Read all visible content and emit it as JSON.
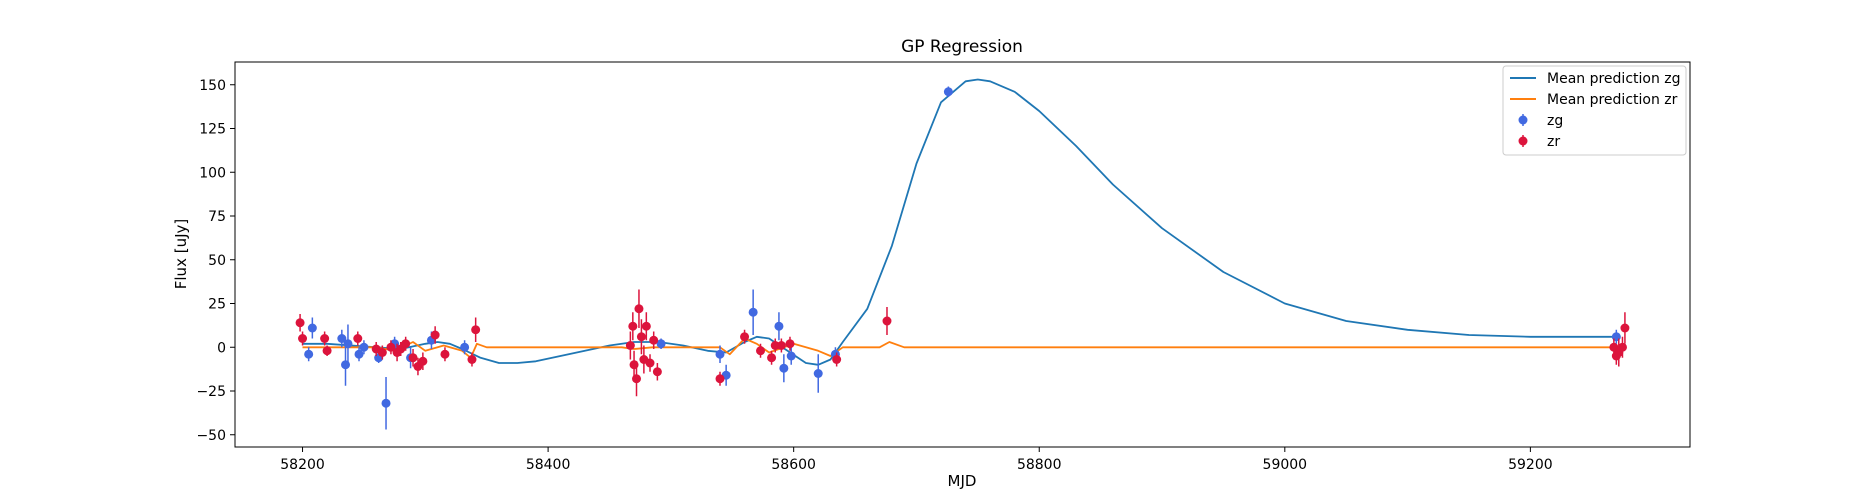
{
  "chart_data": {
    "type": "scatter",
    "title": "GP Regression",
    "xlabel": "MJD",
    "ylabel": "Flux [uJy]",
    "xlim": [
      58145,
      59330
    ],
    "ylim": [
      -57,
      163
    ],
    "xticks": [
      58200,
      58400,
      58600,
      58800,
      59000,
      59200
    ],
    "yticks": [
      -50,
      -25,
      0,
      25,
      50,
      75,
      100,
      125,
      150
    ],
    "grid": false,
    "legend_position": "top-right",
    "lines": [
      {
        "name": "Mean prediction zg",
        "color": "#1f77b4",
        "points": [
          [
            58200,
            2
          ],
          [
            58220,
            2
          ],
          [
            58240,
            1
          ],
          [
            58260,
            0
          ],
          [
            58280,
            -1
          ],
          [
            58300,
            2
          ],
          [
            58310,
            3
          ],
          [
            58320,
            2
          ],
          [
            58330,
            -1
          ],
          [
            58345,
            -6
          ],
          [
            58360,
            -9
          ],
          [
            58375,
            -9
          ],
          [
            58390,
            -8
          ],
          [
            58410,
            -5
          ],
          [
            58430,
            -2
          ],
          [
            58450,
            1
          ],
          [
            58470,
            3
          ],
          [
            58490,
            3
          ],
          [
            58510,
            1
          ],
          [
            58530,
            -2
          ],
          [
            58545,
            -3
          ],
          [
            58560,
            3
          ],
          [
            58570,
            6
          ],
          [
            58580,
            5
          ],
          [
            58595,
            -2
          ],
          [
            58610,
            -9
          ],
          [
            58620,
            -10
          ],
          [
            58630,
            -7
          ],
          [
            58640,
            3
          ],
          [
            58660,
            22
          ],
          [
            58680,
            58
          ],
          [
            58700,
            105
          ],
          [
            58720,
            140
          ],
          [
            58740,
            152
          ],
          [
            58750,
            153
          ],
          [
            58760,
            152
          ],
          [
            58780,
            146
          ],
          [
            58800,
            135
          ],
          [
            58830,
            115
          ],
          [
            58860,
            93
          ],
          [
            58900,
            68
          ],
          [
            58950,
            43
          ],
          [
            59000,
            25
          ],
          [
            59050,
            15
          ],
          [
            59100,
            10
          ],
          [
            59150,
            7
          ],
          [
            59200,
            6
          ],
          [
            59270,
            6
          ]
        ]
      },
      {
        "name": "Mean prediction zr",
        "color": "#ff7f0e",
        "points": [
          [
            58200,
            0
          ],
          [
            58260,
            0
          ],
          [
            58275,
            -2
          ],
          [
            58290,
            3
          ],
          [
            58300,
            -2
          ],
          [
            58315,
            1
          ],
          [
            58330,
            -2
          ],
          [
            58337,
            -6
          ],
          [
            58342,
            2
          ],
          [
            58350,
            0
          ],
          [
            58460,
            0
          ],
          [
            58470,
            -1
          ],
          [
            58485,
            0
          ],
          [
            58540,
            0
          ],
          [
            58548,
            -4
          ],
          [
            58560,
            5
          ],
          [
            58570,
            2
          ],
          [
            58580,
            -3
          ],
          [
            58600,
            2
          ],
          [
            58620,
            -2
          ],
          [
            58630,
            -5
          ],
          [
            58640,
            0
          ],
          [
            58670,
            0
          ],
          [
            58678,
            3
          ],
          [
            58690,
            0
          ],
          [
            59270,
            0
          ]
        ]
      }
    ],
    "series": [
      {
        "name": "zg",
        "color": "#4169e1",
        "points": [
          [
            58205,
            -4,
            4
          ],
          [
            58208,
            11,
            6
          ],
          [
            58232,
            5,
            5
          ],
          [
            58235,
            -10,
            12
          ],
          [
            58237,
            2,
            11
          ],
          [
            58246,
            -4,
            4
          ],
          [
            58250,
            0,
            4
          ],
          [
            58262,
            -6,
            3
          ],
          [
            58268,
            -32,
            15
          ],
          [
            58275,
            2,
            4
          ],
          [
            58288,
            -6,
            6
          ],
          [
            58305,
            4,
            5
          ],
          [
            58332,
            0,
            4
          ],
          [
            58492,
            2,
            3
          ],
          [
            58540,
            -4,
            5
          ],
          [
            58545,
            -16,
            6
          ],
          [
            58567,
            20,
            13
          ],
          [
            58588,
            12,
            8
          ],
          [
            58592,
            -12,
            8
          ],
          [
            58598,
            -5,
            5
          ],
          [
            58620,
            -15,
            11
          ],
          [
            58634,
            -4,
            4
          ],
          [
            58726,
            146,
            3
          ],
          [
            59270,
            6,
            4
          ]
        ]
      },
      {
        "name": "zr",
        "color": "#dc143c",
        "points": [
          [
            58198,
            14,
            5
          ],
          [
            58200,
            5,
            4
          ],
          [
            58218,
            5,
            4
          ],
          [
            58220,
            -2,
            3
          ],
          [
            58245,
            5,
            4
          ],
          [
            58260,
            -1,
            4
          ],
          [
            58265,
            -3,
            4
          ],
          [
            58272,
            0,
            4
          ],
          [
            58277,
            -3,
            5
          ],
          [
            58280,
            -1,
            4
          ],
          [
            58284,
            2,
            4
          ],
          [
            58290,
            -6,
            5
          ],
          [
            58294,
            -11,
            5
          ],
          [
            58298,
            -8,
            5
          ],
          [
            58308,
            7,
            5
          ],
          [
            58316,
            -4,
            4
          ],
          [
            58338,
            -7,
            4
          ],
          [
            58341,
            10,
            7
          ],
          [
            58467,
            1,
            8
          ],
          [
            58469,
            12,
            8
          ],
          [
            58470,
            -10,
            8
          ],
          [
            58472,
            -18,
            10
          ],
          [
            58474,
            22,
            11
          ],
          [
            58476,
            6,
            10
          ],
          [
            58478,
            -7,
            8
          ],
          [
            58480,
            12,
            8
          ],
          [
            58483,
            -9,
            5
          ],
          [
            58486,
            4,
            5
          ],
          [
            58489,
            -14,
            5
          ],
          [
            58540,
            -18,
            4
          ],
          [
            58560,
            6,
            4
          ],
          [
            58573,
            -2,
            4
          ],
          [
            58582,
            -6,
            4
          ],
          [
            58585,
            1,
            4
          ],
          [
            58590,
            1,
            4
          ],
          [
            58597,
            2,
            4
          ],
          [
            58635,
            -7,
            4
          ],
          [
            58676,
            15,
            8
          ],
          [
            59268,
            0,
            5
          ],
          [
            59270,
            -5,
            5
          ],
          [
            59272,
            -3,
            8
          ],
          [
            59275,
            0,
            6
          ],
          [
            59277,
            11,
            9
          ]
        ]
      }
    ]
  }
}
